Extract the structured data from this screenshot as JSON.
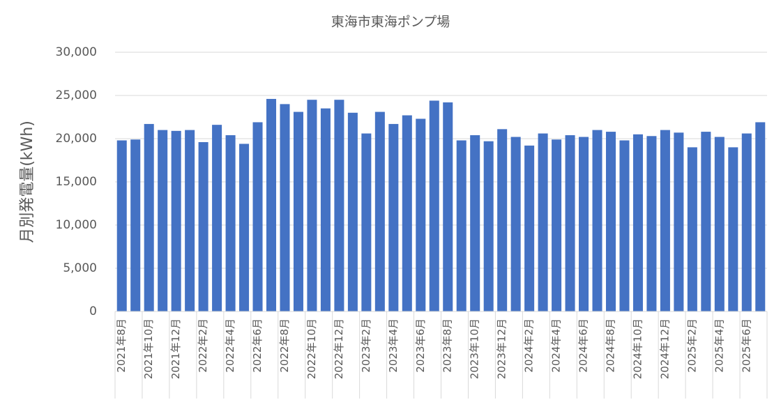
{
  "chart_data": {
    "type": "bar",
    "title": "東海市東海ポンプ場",
    "y_label": "月別発電量(kWh)",
    "categories": [
      "2021年8月",
      null,
      "2021年10月",
      null,
      "2021年12月",
      null,
      "2022年2月",
      null,
      "2022年4月",
      null,
      "2022年6月",
      null,
      "2022年8月",
      null,
      "2022年10月",
      null,
      "2022年12月",
      null,
      "2023年2月",
      null,
      "2023年4月",
      null,
      "2023年6月",
      null,
      "2023年8月",
      null,
      "2023年10月",
      null,
      "2023年12月",
      null,
      "2024年2月",
      null,
      "2024年4月",
      null,
      "2024年6月",
      null,
      "2024年8月",
      null,
      "2024年10月",
      null,
      "2024年12月",
      null,
      "2025年2月",
      null,
      "2025年4月",
      null,
      "2025年6月",
      null
    ],
    "values": [
      19800,
      19900,
      21700,
      21000,
      20900,
      21000,
      19600,
      21600,
      20400,
      19400,
      21900,
      24600,
      24000,
      23100,
      24500,
      23500,
      24500,
      23000,
      20600,
      23100,
      21700,
      22700,
      22300,
      24400,
      24200,
      19800,
      20400,
      19700,
      21100,
      20200,
      19200,
      20600,
      19900,
      20400,
      20200,
      21000,
      20800,
      19800,
      20500,
      20300,
      21000,
      20700,
      19000,
      20800,
      20200,
      19000,
      20600,
      21900
    ],
    "color": "#4472c4",
    "ylim": [
      0,
      30000
    ],
    "yticks": [
      0,
      {
        "value": 5000,
        "label": "5,000"
      },
      {
        "value": 10000,
        "label": "10,000"
      },
      {
        "value": 15000,
        "label": "15,000"
      },
      {
        "value": 20000,
        "label": "20,000"
      },
      {
        "value": 25000,
        "label": "25,000"
      },
      {
        "value": 30000,
        "label": "30,000"
      }
    ],
    "grid": true
  }
}
